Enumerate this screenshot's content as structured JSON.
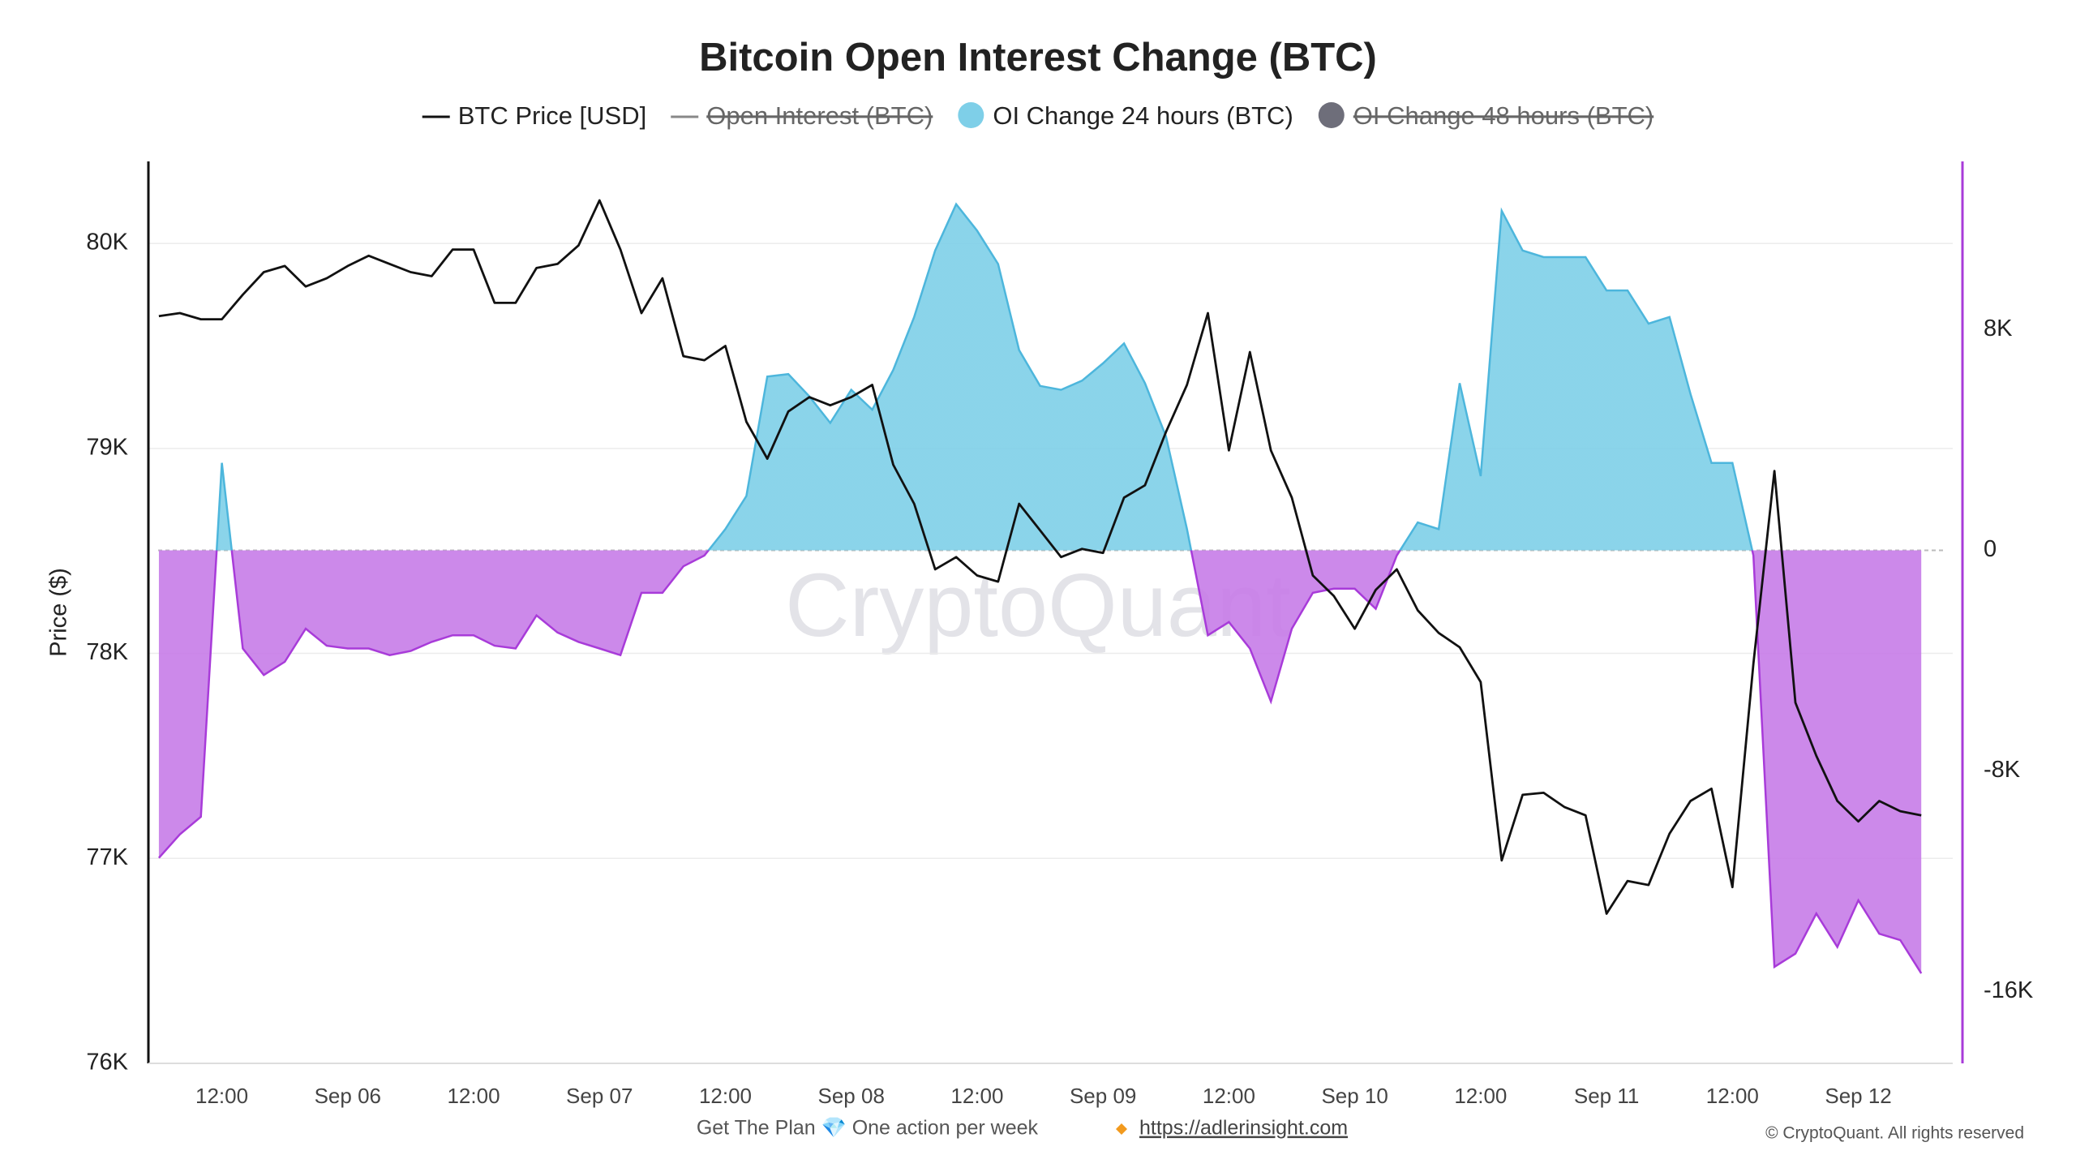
{
  "chart_data": {
    "type": "line-area",
    "title": "Bitcoin Open Interest Change (BTC)",
    "y_label": "Price ($)",
    "watermark": "CryptoQuant",
    "footer": {
      "text": "Get The Plan 💎 One action per week",
      "link": "https://adlerinsight.com",
      "copyright": "© CryptoQuant. All rights reserved"
    },
    "x": [
      6,
      8,
      10,
      12,
      14,
      16,
      18,
      20,
      22,
      24,
      26,
      28,
      30,
      32,
      34,
      36,
      38,
      40,
      42,
      44,
      46,
      48,
      50,
      52,
      54,
      56,
      58,
      60,
      62,
      64,
      66,
      68,
      70,
      72,
      74,
      76,
      78,
      80,
      82,
      84,
      86,
      88,
      90,
      92,
      94,
      96,
      98,
      100,
      102,
      104,
      106,
      108,
      110,
      112,
      114,
      116,
      118,
      120,
      122,
      124,
      126,
      128,
      130,
      132,
      134,
      136,
      138,
      140,
      142,
      144,
      146,
      148,
      150,
      152,
      154,
      156,
      158,
      160,
      162,
      164,
      166,
      168,
      170,
      172,
      174
    ],
    "xlim": [
      5,
      177
    ],
    "xticks": [
      {
        "value": 12,
        "label": "12:00"
      },
      {
        "value": 24,
        "label": "Sep 06"
      },
      {
        "value": 36,
        "label": "12:00"
      },
      {
        "value": 48,
        "label": "Sep 07"
      },
      {
        "value": 60,
        "label": "12:00"
      },
      {
        "value": 72,
        "label": "Sep 08"
      },
      {
        "value": 84,
        "label": "12:00"
      },
      {
        "value": 96,
        "label": "Sep 09"
      },
      {
        "value": 108,
        "label": "12:00"
      },
      {
        "value": 120,
        "label": "Sep 10"
      },
      {
        "value": 132,
        "label": "12:00"
      },
      {
        "value": 144,
        "label": "Sep 11"
      },
      {
        "value": 156,
        "label": "12:00"
      },
      {
        "value": 168,
        "label": "Sep 12"
      }
    ],
    "ylim": [
      76000,
      80400
    ],
    "yticks": [
      {
        "value": 76000,
        "label": "76K"
      },
      {
        "value": 77000,
        "label": "77K"
      },
      {
        "value": 78000,
        "label": "78K"
      },
      {
        "value": 79000,
        "label": "79K"
      },
      {
        "value": 80000,
        "label": "80K"
      }
    ],
    "y2lim": [
      -18600,
      14100
    ],
    "y2ticks": [
      {
        "value": -16000,
        "label": "-16K"
      },
      {
        "value": -8000,
        "label": "-8K"
      },
      0,
      {
        "value": 8000,
        "label": "8K"
      }
    ],
    "grid": true,
    "zero_line": true,
    "series": [
      {
        "name": "BTC Price [USD]",
        "color": "#111111",
        "marker": "line",
        "visible": true,
        "axis": "y",
        "values": [
          79645,
          79660,
          79630,
          79630,
          79750,
          79860,
          79890,
          79790,
          79830,
          79890,
          79940,
          79900,
          79860,
          79840,
          79970,
          79970,
          79710,
          79710,
          79880,
          79900,
          79990,
          80210,
          79970,
          79660,
          79830,
          79450,
          79430,
          79500,
          79130,
          78950,
          79180,
          79250,
          79210,
          79250,
          79310,
          78920,
          78730,
          78410,
          78470,
          78380,
          78350,
          78730,
          78600,
          78470,
          78510,
          78490,
          78760,
          78820,
          79080,
          79310,
          79660,
          78990,
          79470,
          78990,
          78760,
          78380,
          78280,
          78120,
          78310,
          78410,
          78210,
          78100,
          78030,
          77860,
          76990,
          77310,
          77320,
          77250,
          77210,
          76730,
          76890,
          76870,
          77120,
          77280,
          77340,
          76860,
          77950,
          78890,
          77760,
          77500,
          77280,
          77180,
          77280,
          77230,
          77210
        ]
      },
      {
        "name": "Open Interest (BTC)",
        "color": "#888888",
        "marker": "line",
        "visible": false
      },
      {
        "name": "OI Change 24 hours (BTC)",
        "color": "#7ecfe8",
        "negative_color": "#c77ce8",
        "marker": "circle",
        "visible": true,
        "axis": "y2",
        "values": [
          -11150,
          -10300,
          -9660,
          3170,
          -3560,
          -4520,
          -4040,
          -2840,
          -3460,
          -3560,
          -3560,
          -3800,
          -3650,
          -3320,
          -3080,
          -3080,
          -3460,
          -3560,
          -2360,
          -2980,
          -3320,
          -3560,
          -3800,
          -1540,
          -1540,
          -580,
          -190,
          770,
          1970,
          6300,
          6390,
          5580,
          4620,
          5820,
          5100,
          6540,
          8460,
          10870,
          12550,
          11590,
          10380,
          7260,
          5960,
          5820,
          6150,
          6780,
          7500,
          6060,
          4130,
          770,
          -3080,
          -2600,
          -3560,
          -5480,
          -2840,
          -1540,
          -1390,
          -1390,
          -2120,
          -190,
          1010,
          770,
          6060,
          2690,
          12310,
          10870,
          10630,
          10630,
          10630,
          9420,
          9420,
          8220,
          8460,
          5670,
          3170,
          3170,
          -190,
          -15100,
          -14620,
          -13170,
          -14380,
          -12690,
          -13900,
          -14130,
          -15340
        ]
      },
      {
        "name": "OI Change 48 hours (BTC)",
        "color": "#6e6e7a",
        "marker": "circle",
        "visible": false
      }
    ]
  }
}
